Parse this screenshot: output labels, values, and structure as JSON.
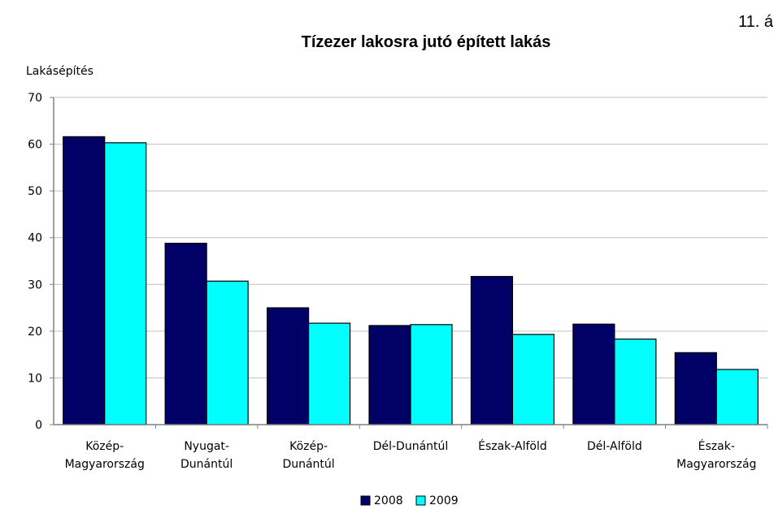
{
  "corner_text": "11. á",
  "chart_data": {
    "type": "bar",
    "title": "Tízezer lakosra jutó épített lakás",
    "ylabel": "Lakásépítés",
    "xlabel": "",
    "ylim": [
      0,
      70
    ],
    "yticks": [
      0,
      10,
      20,
      30,
      40,
      50,
      60,
      70
    ],
    "grid": true,
    "legend_position": "bottom",
    "categories": [
      [
        "Közép-",
        "Magyarország"
      ],
      [
        "Nyugat-",
        "Dunántúl"
      ],
      [
        "Közép-",
        "Dunántúl"
      ],
      [
        "Dél-Dunántúl"
      ],
      [
        "Észak-Alföld"
      ],
      [
        "Dél-Alföld"
      ],
      [
        "Észak-",
        "Magyarország"
      ]
    ],
    "series": [
      {
        "name": "2008",
        "color": "#000066",
        "values": [
          61.6,
          38.8,
          25.0,
          21.2,
          31.7,
          21.5,
          15.4
        ]
      },
      {
        "name": "2009",
        "color": "#00FFFF",
        "values": [
          60.3,
          30.7,
          21.7,
          21.4,
          19.3,
          18.3,
          11.8
        ]
      }
    ]
  }
}
